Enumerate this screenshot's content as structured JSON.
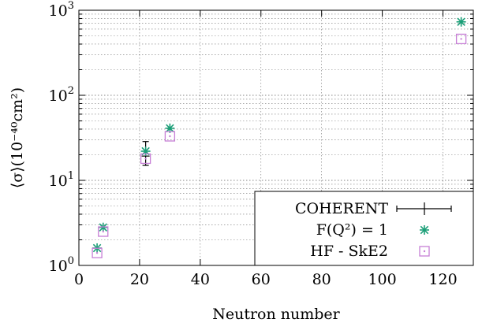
{
  "chart_data": {
    "type": "scatter",
    "xlabel": "Neutron number",
    "ylabel": "⟨σ⟩(10⁻⁴⁰cm²)",
    "xlim": [
      0,
      130
    ],
    "ylim": [
      1,
      1000
    ],
    "yscale": "log",
    "grid": true,
    "legend_position": "bottom-right",
    "x_ticks": [
      "0",
      "20",
      "40",
      "60",
      "80",
      "100",
      "120"
    ],
    "y_ticks": [
      {
        "base": "10",
        "exp": "0"
      },
      {
        "base": "10",
        "exp": "1"
      },
      {
        "base": "10",
        "exp": "2"
      },
      {
        "base": "10",
        "exp": "3"
      }
    ],
    "series": [
      {
        "name": "COHERENT",
        "marker": "errorbar",
        "color": "#000000",
        "points": [
          {
            "x": 22,
            "y": 19.3,
            "y_err_low": 4.3,
            "y_err_high": 9.3
          }
        ]
      },
      {
        "name": "F(Q²) = 1",
        "marker": "asterisk",
        "color": "#1a9e77",
        "points": [
          {
            "x": 6,
            "y": 1.6
          },
          {
            "x": 8,
            "y": 2.8
          },
          {
            "x": 22,
            "y": 22
          },
          {
            "x": 30,
            "y": 41
          },
          {
            "x": 126,
            "y": 730
          }
        ]
      },
      {
        "name": "HF - SkE2",
        "marker": "dotted-square",
        "color": "#c77fd6",
        "points": [
          {
            "x": 6,
            "y": 1.4
          },
          {
            "x": 8,
            "y": 2.5
          },
          {
            "x": 22,
            "y": 18
          },
          {
            "x": 30,
            "y": 33
          },
          {
            "x": 126,
            "y": 460
          }
        ]
      }
    ]
  }
}
